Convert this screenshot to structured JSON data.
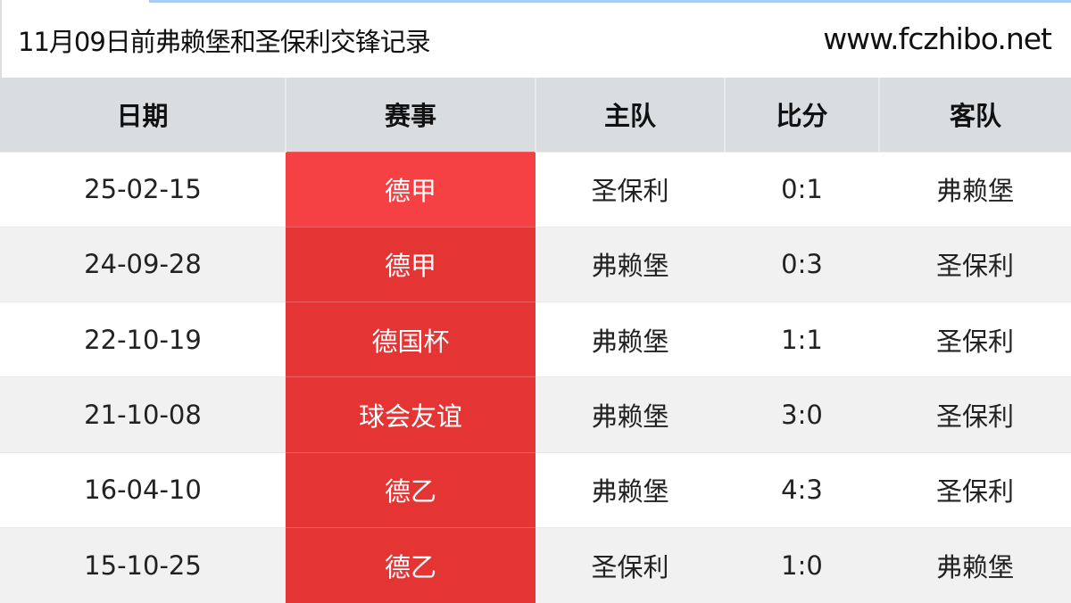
{
  "header": {
    "title": "11月09日前弗赖堡和圣保利交锋记录",
    "site": "www.fczhibo.net"
  },
  "columns": [
    "日期",
    "赛事",
    "主队",
    "比分",
    "客队"
  ],
  "rows": [
    {
      "date": "25-02-15",
      "competition": "德甲",
      "home": "圣保利",
      "score": "0:1",
      "away": "弗赖堡"
    },
    {
      "date": "24-09-28",
      "competition": "德甲",
      "home": "弗赖堡",
      "score": "0:3",
      "away": "圣保利"
    },
    {
      "date": "22-10-19",
      "competition": "德国杯",
      "home": "弗赖堡",
      "score": "1:1",
      "away": "圣保利"
    },
    {
      "date": "21-10-08",
      "competition": "球会友谊",
      "home": "弗赖堡",
      "score": "3:0",
      "away": "圣保利"
    },
    {
      "date": "16-04-10",
      "competition": "德乙",
      "home": "弗赖堡",
      "score": "4:3",
      "away": "圣保利"
    },
    {
      "date": "15-10-25",
      "competition": "德乙",
      "home": "圣保利",
      "score": "1:0",
      "away": "弗赖堡"
    }
  ],
  "colors": {
    "competition_bg": "#e53434",
    "competition_bg_first": "#f54044",
    "header_bg": "#d9dde0"
  }
}
